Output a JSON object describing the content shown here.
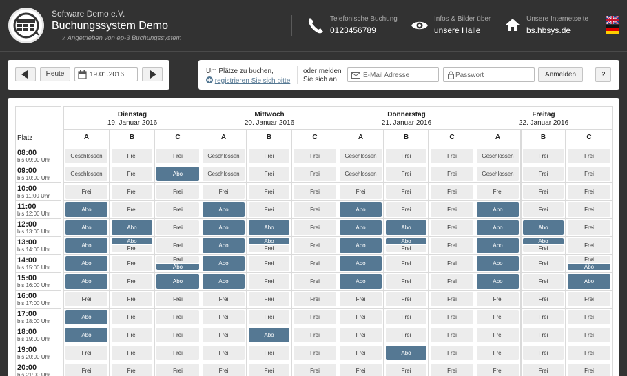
{
  "header": {
    "org": "Software Demo e.V.",
    "system_title": "Buchungssystem Demo",
    "powered_prefix": "» Angetrieben von ",
    "powered_link": "ep-3 Buchungssystem",
    "phone_label": "Telefonische Buchung",
    "phone_value": "0123456789",
    "info_label": "Infos & Bilder über",
    "info_value": "unsere Halle",
    "web_label": "Unsere Internetseite",
    "web_value": "bs.hbsys.de"
  },
  "nav": {
    "prev_icon": "arrow-left-icon",
    "today_label": "Heute",
    "date_value": "19.01.2016",
    "next_icon": "arrow-right-icon"
  },
  "login": {
    "line1": "Um Plätze zu buchen,",
    "register_link": "registrieren Sie sich bitte",
    "or_line1": "oder melden",
    "or_line2": "Sie sich an",
    "email_placeholder": "E-Mail Adresse",
    "password_placeholder": "Passwort",
    "login_button": "Anmelden",
    "help_button": "?"
  },
  "calendar": {
    "platz_label": "Platz",
    "courts": [
      "A",
      "B",
      "C"
    ],
    "days": [
      {
        "name": "Dienstag",
        "date": "19. Januar 2016"
      },
      {
        "name": "Mittwoch",
        "date": "20. Januar 2016"
      },
      {
        "name": "Donnerstag",
        "date": "21. Januar 2016"
      },
      {
        "name": "Freitag",
        "date": "22. Januar 2016"
      }
    ],
    "times": [
      {
        "t": "08:00",
        "u": "bis 09:00 Uhr"
      },
      {
        "t": "09:00",
        "u": "bis 10:00 Uhr"
      },
      {
        "t": "10:00",
        "u": "bis 11:00 Uhr"
      },
      {
        "t": "11:00",
        "u": "bis 12:00 Uhr"
      },
      {
        "t": "12:00",
        "u": "bis 13:00 Uhr"
      },
      {
        "t": "13:00",
        "u": "bis 14:00 Uhr"
      },
      {
        "t": "14:00",
        "u": "bis 15:00 Uhr"
      },
      {
        "t": "15:00",
        "u": "bis 16:00 Uhr"
      },
      {
        "t": "16:00",
        "u": "bis 17:00 Uhr"
      },
      {
        "t": "17:00",
        "u": "bis 18:00 Uhr"
      },
      {
        "t": "18:00",
        "u": "bis 19:00 Uhr"
      },
      {
        "t": "19:00",
        "u": "bis 20:00 Uhr"
      },
      {
        "t": "20:00",
        "u": "bis 21:00 Uhr"
      }
    ],
    "labels": {
      "frei": "Frei",
      "abo": "Abo",
      "geschlossen": "Geschlossen"
    },
    "slots": [
      [
        [
          "G",
          "F",
          "F"
        ],
        [
          "G",
          "F",
          "F"
        ],
        [
          "G",
          "F",
          "F"
        ],
        [
          "G",
          "F",
          "F"
        ]
      ],
      [
        [
          "G",
          "F",
          "A"
        ],
        [
          "G",
          "F",
          "F"
        ],
        [
          "G",
          "F",
          "F"
        ],
        [
          "G",
          "F",
          "F"
        ]
      ],
      [
        [
          "F",
          "F",
          "F"
        ],
        [
          "F",
          "F",
          "F"
        ],
        [
          "F",
          "F",
          "F"
        ],
        [
          "F",
          "F",
          "F"
        ]
      ],
      [
        [
          "A",
          "F",
          "F"
        ],
        [
          "A",
          "F",
          "F"
        ],
        [
          "A",
          "F",
          "F"
        ],
        [
          "A",
          "F",
          "F"
        ]
      ],
      [
        [
          "A",
          "A",
          "F"
        ],
        [
          "A",
          "A",
          "F"
        ],
        [
          "A",
          "A",
          "F"
        ],
        [
          "A",
          "A",
          "F"
        ]
      ],
      [
        [
          "A",
          "AF",
          "F"
        ],
        [
          "A",
          "AF",
          "F"
        ],
        [
          "A",
          "AF",
          "F"
        ],
        [
          "A",
          "AF",
          "F"
        ]
      ],
      [
        [
          "A",
          "F",
          "FA"
        ],
        [
          "A",
          "F",
          "F"
        ],
        [
          "A",
          "F",
          "F"
        ],
        [
          "A",
          "F",
          "FA"
        ]
      ],
      [
        [
          "A",
          "F",
          "A"
        ],
        [
          "A",
          "F",
          "F"
        ],
        [
          "A",
          "F",
          "F"
        ],
        [
          "A",
          "F",
          "A"
        ]
      ],
      [
        [
          "F",
          "F",
          "F"
        ],
        [
          "F",
          "F",
          "F"
        ],
        [
          "F",
          "F",
          "F"
        ],
        [
          "F",
          "F",
          "F"
        ]
      ],
      [
        [
          "A",
          "F",
          "F"
        ],
        [
          "F",
          "F",
          "F"
        ],
        [
          "F",
          "F",
          "F"
        ],
        [
          "F",
          "F",
          "F"
        ]
      ],
      [
        [
          "A",
          "F",
          "F"
        ],
        [
          "F",
          "A",
          "F"
        ],
        [
          "F",
          "F",
          "F"
        ],
        [
          "F",
          "F",
          "F"
        ]
      ],
      [
        [
          "F",
          "F",
          "F"
        ],
        [
          "F",
          "F",
          "F"
        ],
        [
          "F",
          "A",
          "F"
        ],
        [
          "F",
          "F",
          "F"
        ]
      ],
      [
        [
          "F",
          "F",
          "F"
        ],
        [
          "F",
          "F",
          "F"
        ],
        [
          "F",
          "F",
          "F"
        ],
        [
          "F",
          "F",
          "F"
        ]
      ]
    ]
  },
  "colors": {
    "abo": "#557893",
    "frei": "#ececec",
    "header_bg": "#323232"
  }
}
